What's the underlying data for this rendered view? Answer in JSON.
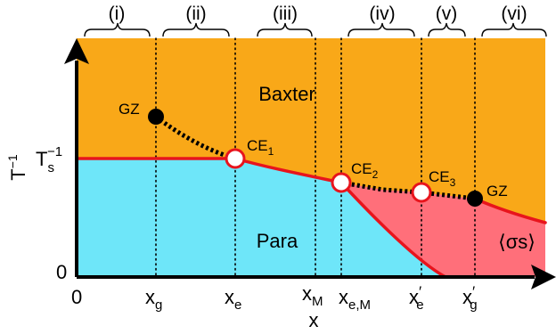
{
  "regions": {
    "baxter": "Baxter",
    "para": "Para",
    "sigma_s": "⟨σs⟩"
  },
  "ranges": [
    {
      "label": "(i)"
    },
    {
      "label": "(ii)"
    },
    {
      "label": "(iii)"
    },
    {
      "label": "(iv)"
    },
    {
      "label": "(v)"
    },
    {
      "label": "(vi)"
    }
  ],
  "axes": {
    "x_label": "x",
    "y_label": "T",
    "y_label_sup": "−1",
    "origin_x": "0",
    "origin_y": "0",
    "ts_base": "T",
    "ts_sub": "s",
    "ts_sup": "−1"
  },
  "x_ticks": [
    {
      "base": "x",
      "sub": "g",
      "prime": ""
    },
    {
      "base": "x",
      "sub": "e",
      "prime": ""
    },
    {
      "base": "x",
      "sub": "M",
      "prime": ""
    },
    {
      "base": "x",
      "sub": "e,M",
      "prime": ""
    },
    {
      "base": "x",
      "sub": "e",
      "prime": "′"
    },
    {
      "base": "x",
      "sub": "g",
      "prime": "′"
    }
  ],
  "points": {
    "gz_left": {
      "label": "GZ"
    },
    "ce1": {
      "label": "CE",
      "sub": "1"
    },
    "ce2": {
      "label": "CE",
      "sub": "2"
    },
    "ce3": {
      "label": "CE",
      "sub": "3"
    },
    "gz_right": {
      "label": "GZ"
    }
  },
  "colors": {
    "baxter": "#f9a818",
    "para": "#6ee6f9",
    "sigma_s": "#ff6f7a",
    "boundary": "#e8141c",
    "first_order": "#000000"
  }
}
